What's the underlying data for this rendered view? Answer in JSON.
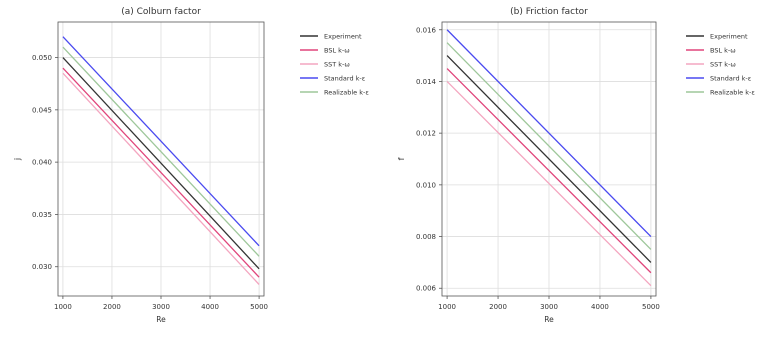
{
  "chart_data": [
    {
      "type": "line",
      "title": "(a) Colburn factor",
      "xlabel": "Re",
      "ylabel": "j",
      "x": [
        1000,
        5000
      ],
      "xlim": [
        900,
        5100
      ],
      "ylim": [
        0.0272,
        0.0534
      ],
      "xticks": [
        1000,
        2000,
        3000,
        4000,
        5000
      ],
      "yticks": [
        0.03,
        0.035,
        0.04,
        0.045,
        0.05
      ],
      "ytick_labels": [
        "0.030",
        "0.035",
        "0.040",
        "0.045",
        "0.050"
      ],
      "grid": true,
      "legend_position": "outside-right",
      "series": [
        {
          "name": "Experiment",
          "values": [
            0.05,
            0.0298
          ],
          "color": "#333333"
        },
        {
          "name": "BSL k-ω",
          "values": [
            0.049,
            0.029
          ],
          "color": "#e0457b"
        },
        {
          "name": "SST k-ω",
          "values": [
            0.0485,
            0.0283
          ],
          "color": "#f4a6c0"
        },
        {
          "name": "Standard k-ε",
          "values": [
            0.052,
            0.032
          ],
          "color": "#4a4af0"
        },
        {
          "name": "Realizable k-ε",
          "values": [
            0.051,
            0.031
          ],
          "color": "#9ec79a"
        }
      ]
    },
    {
      "type": "line",
      "title": "(b) Friction factor",
      "xlabel": "Re",
      "ylabel": "f",
      "x": [
        1000,
        5000
      ],
      "xlim": [
        900,
        5100
      ],
      "ylim": [
        0.0057,
        0.0163
      ],
      "xticks": [
        1000,
        2000,
        3000,
        4000,
        5000
      ],
      "yticks": [
        0.006,
        0.008,
        0.01,
        0.012,
        0.014,
        0.016
      ],
      "ytick_labels": [
        "0.006",
        "0.008",
        "0.010",
        "0.012",
        "0.014",
        "0.016"
      ],
      "grid": true,
      "legend_position": "outside-right",
      "series": [
        {
          "name": "Experiment",
          "values": [
            0.015,
            0.007
          ],
          "color": "#333333"
        },
        {
          "name": "BSL k-ω",
          "values": [
            0.0145,
            0.0066
          ],
          "color": "#e0457b"
        },
        {
          "name": "SST k-ω",
          "values": [
            0.014,
            0.0061
          ],
          "color": "#f4a6c0"
        },
        {
          "name": "Standard k-ε",
          "values": [
            0.016,
            0.008
          ],
          "color": "#4a4af0"
        },
        {
          "name": "Realizable k-ε",
          "values": [
            0.0155,
            0.0075
          ],
          "color": "#9ec79a"
        }
      ]
    }
  ]
}
